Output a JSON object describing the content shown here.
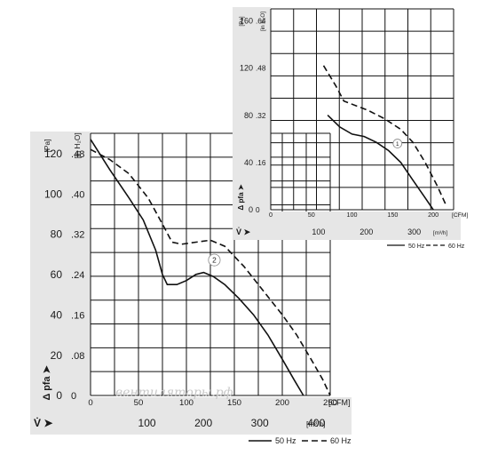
{
  "legend": {
    "series_50": "50 Hz",
    "series_60": "60 Hz"
  },
  "watermark": "вентиляторы.рф",
  "colors": {
    "line": "#111111",
    "band": "#e6e6e6",
    "grid": "#111111"
  },
  "chart_data": [
    {
      "type": "line",
      "title": "",
      "xlabel_unit": "[CFM]",
      "xlabel2_unit": "[m³/h]",
      "xlabel2_symbol": "V̇ ➤",
      "ylabel_unit": "[Pa]",
      "ylabel2_unit": "[in H₂O]",
      "ylabel_symbol": "Δ pfa ➤",
      "xlim": [
        0,
        250
      ],
      "ylim": [
        0,
        130
      ],
      "x_ticks": [
        "0",
        "50",
        "100",
        "150",
        "200",
        "250"
      ],
      "y_ticks": [
        "0",
        "20",
        "40",
        "60",
        "80",
        "100",
        "120"
      ],
      "y2_ticks": [
        "0",
        ".08",
        ".16",
        ".24",
        ".32",
        ".40",
        ".48"
      ],
      "x2_ticks": [
        "100",
        "200",
        "300",
        "400"
      ],
      "curve_marker": "2",
      "series": [
        {
          "name": "50 Hz",
          "style": "solid",
          "x": [
            0,
            20,
            40,
            55,
            68,
            75,
            80,
            90,
            100,
            110,
            118,
            128,
            140,
            155,
            170,
            185,
            200,
            212,
            222
          ],
          "y": [
            127,
            112,
            98,
            87,
            72,
            60,
            55,
            55,
            57,
            60,
            61,
            59,
            55,
            48,
            40,
            30,
            18,
            8,
            0
          ]
        },
        {
          "name": "60 Hz",
          "style": "dashed",
          "x": [
            0,
            20,
            40,
            60,
            75,
            85,
            95,
            110,
            125,
            140,
            160,
            180,
            200,
            215,
            230,
            242,
            250
          ],
          "y": [
            122,
            117,
            110,
            98,
            85,
            76,
            75,
            76,
            77,
            74,
            64,
            52,
            40,
            30,
            18,
            8,
            0
          ]
        }
      ]
    },
    {
      "type": "line",
      "title": "",
      "xlabel_unit": "[CFM]",
      "xlabel2_unit": "[m³/h]",
      "xlabel2_symbol": "V̇ ➤",
      "ylabel_unit": "[Pa]",
      "ylabel2_unit": "[in H₂O]",
      "ylabel_symbol": "Δ pfa ➤",
      "xlim": [
        0,
        225
      ],
      "ylim": [
        0,
        170
      ],
      "x_ticks": [
        "0",
        "50",
        "100",
        "150",
        "200"
      ],
      "x_end_label": "[CFM]",
      "y_ticks": [
        "0",
        "40",
        "80",
        "120",
        "160"
      ],
      "y2_ticks": [
        "0",
        ".16",
        ".32",
        ".48",
        ".64"
      ],
      "x2_ticks": [
        "100",
        "200",
        "300"
      ],
      "curve_marker": "1",
      "series": [
        {
          "name": "50 Hz",
          "style": "solid",
          "x": [
            70,
            85,
            100,
            115,
            130,
            145,
            160,
            175,
            190,
            200
          ],
          "y": [
            80,
            70,
            64,
            62,
            57,
            50,
            40,
            25,
            10,
            0
          ]
        },
        {
          "name": "60 Hz",
          "style": "dashed",
          "x": [
            65,
            80,
            90,
            105,
            120,
            140,
            160,
            175,
            190,
            205,
            215
          ],
          "y": [
            122,
            105,
            92,
            88,
            84,
            77,
            68,
            57,
            40,
            20,
            5
          ]
        }
      ]
    }
  ]
}
